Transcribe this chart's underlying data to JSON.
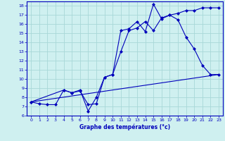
{
  "xlabel": "Graphe des températures (°c)",
  "background_color": "#cff0f0",
  "grid_color": "#a8d8d8",
  "line_color": "#0000bb",
  "xlim": [
    -0.5,
    23.5
  ],
  "ylim": [
    6,
    18.5
  ],
  "yticks": [
    6,
    7,
    8,
    9,
    10,
    11,
    12,
    13,
    14,
    15,
    16,
    17,
    18
  ],
  "xticks": [
    0,
    1,
    2,
    3,
    4,
    5,
    6,
    7,
    8,
    9,
    10,
    11,
    12,
    13,
    14,
    15,
    16,
    17,
    18,
    19,
    20,
    21,
    22,
    23
  ],
  "line1_x": [
    0,
    1,
    2,
    3,
    4,
    5,
    6,
    7,
    8,
    9,
    10,
    11,
    12,
    13,
    14,
    15,
    16,
    17,
    18,
    19,
    20,
    21,
    22,
    23
  ],
  "line1_y": [
    7.5,
    7.3,
    7.2,
    7.2,
    8.8,
    8.5,
    8.7,
    7.2,
    7.3,
    10.2,
    10.5,
    13.0,
    15.3,
    15.6,
    16.3,
    15.3,
    16.7,
    17.0,
    17.2,
    17.5,
    17.5,
    17.8,
    17.8,
    17.8
  ],
  "line2_x": [
    0,
    4,
    5,
    6,
    7,
    8,
    9,
    10,
    11,
    12,
    13,
    14,
    15,
    16,
    17,
    18,
    19,
    20,
    21,
    22,
    23
  ],
  "line2_y": [
    7.5,
    8.8,
    8.5,
    8.8,
    6.5,
    8.0,
    10.2,
    10.5,
    15.3,
    15.5,
    16.3,
    15.2,
    18.2,
    16.6,
    17.0,
    16.5,
    14.6,
    13.3,
    11.5,
    10.5,
    10.5
  ]
}
